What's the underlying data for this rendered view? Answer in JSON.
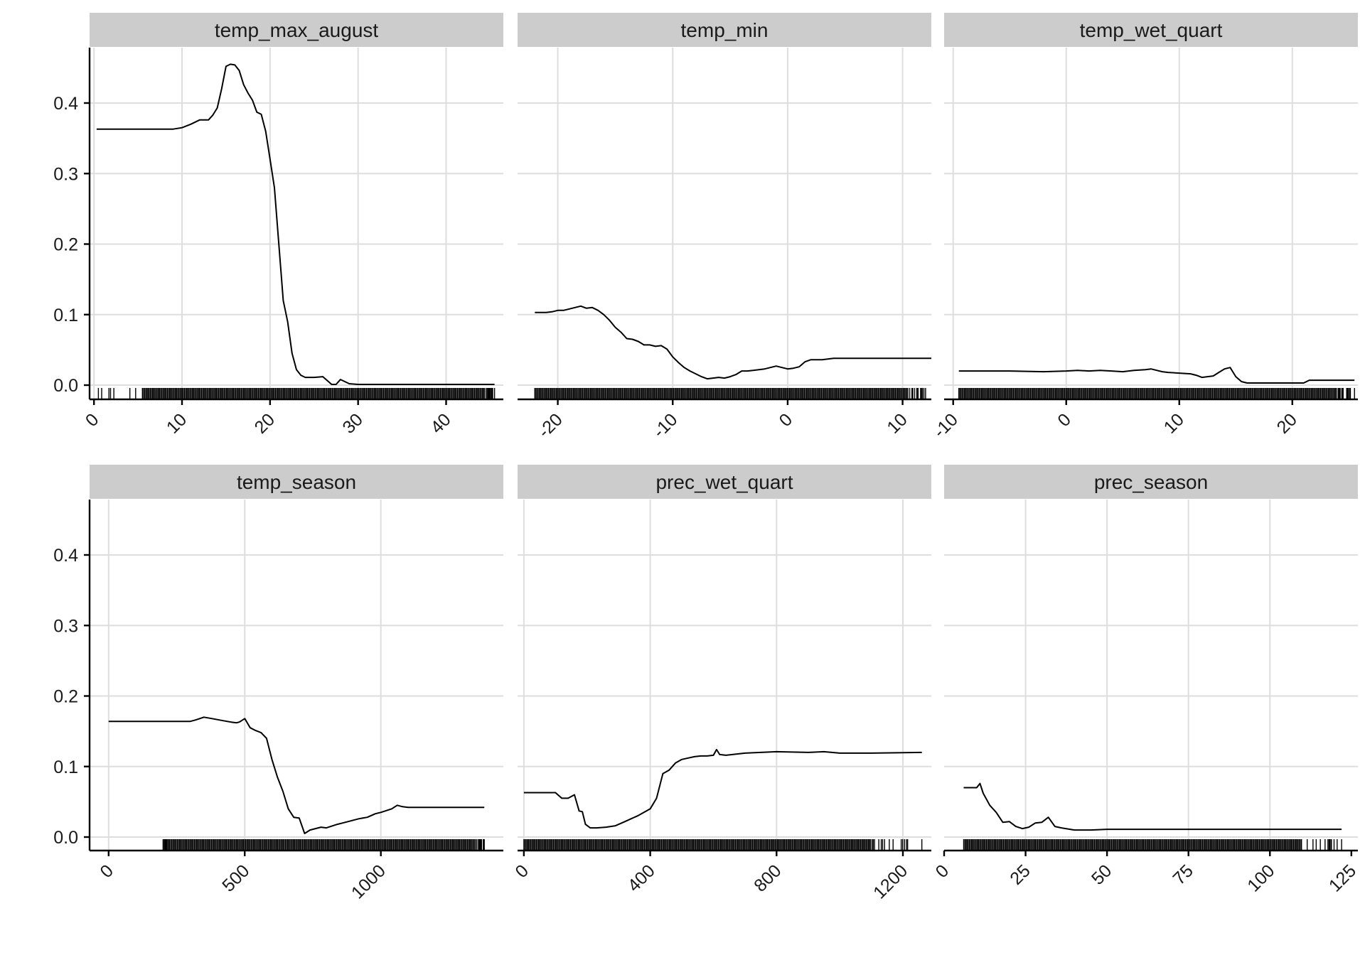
{
  "chart_data": {
    "type": "line",
    "facet_layout": "2x3",
    "y_scale": "shared",
    "ylim": [
      -0.02,
      0.48
    ],
    "y_ticks": [
      0.0,
      0.1,
      0.2,
      0.3,
      0.4
    ],
    "y_tick_labels": [
      "0.0",
      "0.1",
      "0.2",
      "0.3",
      "0.4"
    ],
    "grid": true,
    "rug": true,
    "line_color": "#000000",
    "strip_color": "#cccccc",
    "grid_color": "#dedede",
    "panels": [
      {
        "title": "temp_max_august",
        "xlim": [
          -0.5,
          46.5
        ],
        "x_ticks": [
          0,
          10,
          20,
          30,
          40
        ],
        "x_tick_labels": [
          "0",
          "10",
          "20",
          "30",
          "40"
        ],
        "x_grid": [
          0,
          10,
          20,
          30,
          40
        ],
        "rug_range": [
          0.5,
          45.5
        ],
        "rug_sparse_until": 5.5,
        "rug_dense_to": 44.5,
        "rug_seed": 11,
        "x": [
          0.3,
          5,
          9,
          10,
          11,
          12,
          13,
          13.5,
          14,
          14.5,
          15,
          15.5,
          16,
          16.5,
          17,
          17.5,
          18,
          18.5,
          19,
          19.5,
          20,
          20.5,
          21,
          21.5,
          22,
          22.5,
          23,
          23.5,
          24,
          24.5,
          25,
          26,
          27,
          27.5,
          28,
          29,
          30,
          35,
          40,
          45.5
        ],
        "y": [
          0.363,
          0.363,
          0.363,
          0.365,
          0.37,
          0.376,
          0.376,
          0.383,
          0.393,
          0.42,
          0.452,
          0.455,
          0.454,
          0.446,
          0.426,
          0.414,
          0.404,
          0.387,
          0.384,
          0.36,
          0.32,
          0.28,
          0.2,
          0.12,
          0.09,
          0.045,
          0.022,
          0.014,
          0.011,
          0.011,
          0.011,
          0.012,
          0.001,
          0.001,
          0.008,
          0.002,
          0.001,
          0.001,
          0.001,
          0.001
        ]
      },
      {
        "title": "temp_min",
        "xlim": [
          -23.5,
          12.5
        ],
        "x_ticks": [
          -20,
          -10,
          0,
          10
        ],
        "x_tick_labels": [
          "-20",
          "-10",
          "0",
          "10"
        ],
        "x_grid": [
          -20,
          -10,
          0,
          10
        ],
        "rug_range": [
          -22,
          12
        ],
        "rug_sparse_until": -22,
        "rug_dense_to": 10.5,
        "rug_seed": 23,
        "x": [
          -22,
          -21,
          -20.5,
          -20,
          -19.5,
          -19,
          -18.5,
          -18,
          -17.5,
          -17,
          -16.5,
          -16,
          -15.5,
          -15,
          -14.5,
          -14,
          -13.5,
          -13,
          -12.5,
          -12,
          -11.5,
          -11,
          -10.5,
          -10,
          -9.5,
          -9,
          -8.5,
          -8,
          -7.5,
          -7,
          -6.5,
          -6,
          -5.5,
          -5,
          -4.5,
          -4,
          -3.5,
          -3,
          -2,
          -1.5,
          -1,
          -0.5,
          0,
          0.5,
          1,
          1.5,
          2,
          3,
          4,
          5,
          8,
          12.5
        ],
        "y": [
          0.103,
          0.103,
          0.104,
          0.106,
          0.106,
          0.108,
          0.11,
          0.112,
          0.109,
          0.11,
          0.106,
          0.1,
          0.092,
          0.082,
          0.075,
          0.066,
          0.065,
          0.062,
          0.057,
          0.057,
          0.055,
          0.056,
          0.051,
          0.04,
          0.032,
          0.025,
          0.02,
          0.016,
          0.012,
          0.009,
          0.01,
          0.011,
          0.01,
          0.012,
          0.015,
          0.02,
          0.02,
          0.021,
          0.023,
          0.025,
          0.027,
          0.025,
          0.023,
          0.024,
          0.026,
          0.033,
          0.036,
          0.036,
          0.038,
          0.038,
          0.038,
          0.038
        ]
      },
      {
        "title": "temp_wet_quart",
        "xlim": [
          -10.8,
          25.8
        ],
        "x_ticks": [
          -10,
          0,
          10,
          20
        ],
        "x_tick_labels": [
          "-10",
          "0",
          "10",
          "20"
        ],
        "x_grid": [
          -10,
          0,
          10,
          20
        ],
        "rug_range": [
          -9.5,
          25.5
        ],
        "rug_sparse_until": -9.5,
        "rug_dense_to": 24,
        "rug_seed": 37,
        "x": [
          -9.5,
          -5,
          -2,
          0,
          1,
          2,
          3,
          4,
          5,
          6,
          7,
          7.5,
          8,
          8.5,
          9,
          10,
          11,
          11.5,
          12,
          12.5,
          13,
          13.5,
          14,
          14.5,
          15,
          15.5,
          16,
          17,
          20,
          21,
          21.5,
          22,
          24,
          25.5
        ],
        "y": [
          0.02,
          0.02,
          0.019,
          0.02,
          0.021,
          0.02,
          0.021,
          0.02,
          0.019,
          0.021,
          0.022,
          0.023,
          0.021,
          0.019,
          0.018,
          0.017,
          0.016,
          0.014,
          0.011,
          0.012,
          0.013,
          0.018,
          0.023,
          0.025,
          0.012,
          0.005,
          0.003,
          0.003,
          0.003,
          0.003,
          0.007,
          0.007,
          0.007,
          0.007
        ]
      },
      {
        "title": "temp_season",
        "xlim": [
          -70,
          1450
        ],
        "x_ticks": [
          0,
          500,
          1000
        ],
        "x_tick_labels": [
          "0",
          "500",
          "1000"
        ],
        "x_grid": [
          0,
          500,
          1000
        ],
        "rug_range": [
          200,
          1380
        ],
        "rug_sparse_until": 215,
        "rug_dense_to": 1350,
        "rug_seed": 51,
        "x": [
          0,
          200,
          300,
          320,
          350,
          380,
          420,
          450,
          470,
          480,
          500,
          520,
          540,
          560,
          580,
          600,
          620,
          640,
          660,
          680,
          700,
          720,
          740,
          760,
          780,
          800,
          840,
          860,
          880,
          900,
          920,
          950,
          980,
          1000,
          1040,
          1060,
          1080,
          1100,
          1200,
          1380
        ],
        "y": [
          0.164,
          0.164,
          0.164,
          0.166,
          0.17,
          0.168,
          0.165,
          0.163,
          0.162,
          0.163,
          0.168,
          0.155,
          0.151,
          0.148,
          0.14,
          0.11,
          0.085,
          0.065,
          0.04,
          0.028,
          0.027,
          0.005,
          0.01,
          0.012,
          0.014,
          0.013,
          0.018,
          0.02,
          0.022,
          0.024,
          0.026,
          0.028,
          0.033,
          0.035,
          0.04,
          0.045,
          0.043,
          0.042,
          0.042,
          0.042
        ]
      },
      {
        "title": "prec_wet_quart",
        "xlim": [
          -20,
          1290
        ],
        "x_ticks": [
          0,
          400,
          800,
          1200
        ],
        "x_tick_labels": [
          "0",
          "400",
          "800",
          "1200"
        ],
        "x_grid": [
          0,
          400,
          800,
          1200
        ],
        "rug_range": [
          0,
          1260
        ],
        "rug_sparse_until": 0,
        "rug_dense_to": 1100,
        "rug_seed": 67,
        "x": [
          0,
          100,
          120,
          140,
          160,
          175,
          185,
          195,
          210,
          230,
          260,
          290,
          320,
          340,
          360,
          380,
          400,
          420,
          440,
          460,
          480,
          500,
          520,
          540,
          560,
          580,
          600,
          610,
          620,
          640,
          700,
          800,
          900,
          950,
          1000,
          1100,
          1260
        ],
        "y": [
          0.063,
          0.063,
          0.055,
          0.055,
          0.06,
          0.037,
          0.036,
          0.018,
          0.013,
          0.013,
          0.014,
          0.016,
          0.022,
          0.026,
          0.03,
          0.035,
          0.04,
          0.055,
          0.09,
          0.095,
          0.105,
          0.11,
          0.112,
          0.114,
          0.115,
          0.115,
          0.116,
          0.124,
          0.117,
          0.116,
          0.119,
          0.121,
          0.12,
          0.121,
          0.119,
          0.119,
          0.12
        ]
      },
      {
        "title": "prec_season",
        "xlim": [
          0,
          127
        ],
        "x_ticks": [
          0,
          25,
          50,
          75,
          100,
          125
        ],
        "x_tick_labels": [
          "0",
          "25",
          "50",
          "75",
          "100",
          "125"
        ],
        "x_grid": [
          25,
          50,
          75,
          100
        ],
        "rug_range": [
          6,
          122
        ],
        "rug_sparse_until": 6,
        "rug_dense_to": 110,
        "rug_seed": 83,
        "x": [
          6,
          10,
          11,
          12,
          14,
          16,
          18,
          20,
          22,
          24,
          26,
          28,
          30,
          32,
          34,
          36,
          40,
          45,
          50,
          80,
          122
        ],
        "y": [
          0.07,
          0.07,
          0.076,
          0.062,
          0.045,
          0.035,
          0.021,
          0.022,
          0.015,
          0.012,
          0.014,
          0.02,
          0.021,
          0.028,
          0.015,
          0.013,
          0.01,
          0.01,
          0.011,
          0.011,
          0.011
        ]
      }
    ]
  }
}
